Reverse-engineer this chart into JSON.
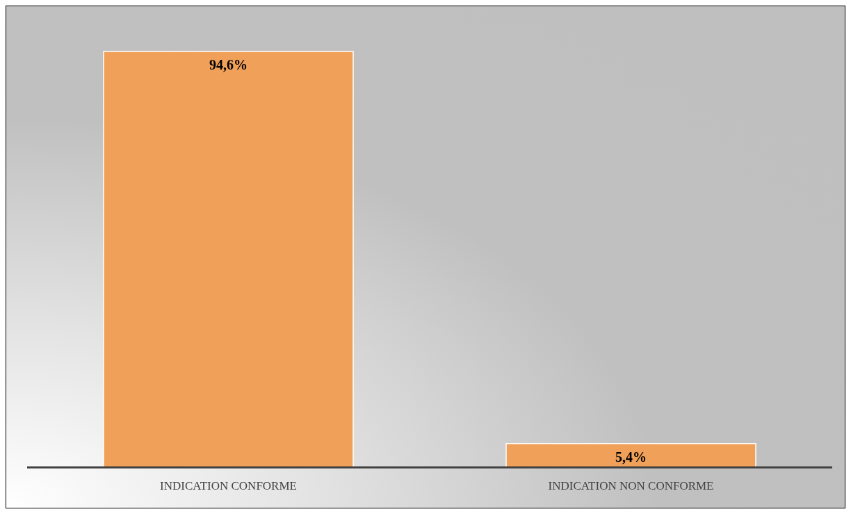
{
  "chart_data": {
    "type": "bar",
    "categories": [
      "INDICATION CONFORME",
      "INDICATION NON CONFORME"
    ],
    "values": [
      94.6,
      5.4
    ],
    "value_labels": [
      "94,6%",
      "5,4%"
    ],
    "color": "#f0a058"
  }
}
